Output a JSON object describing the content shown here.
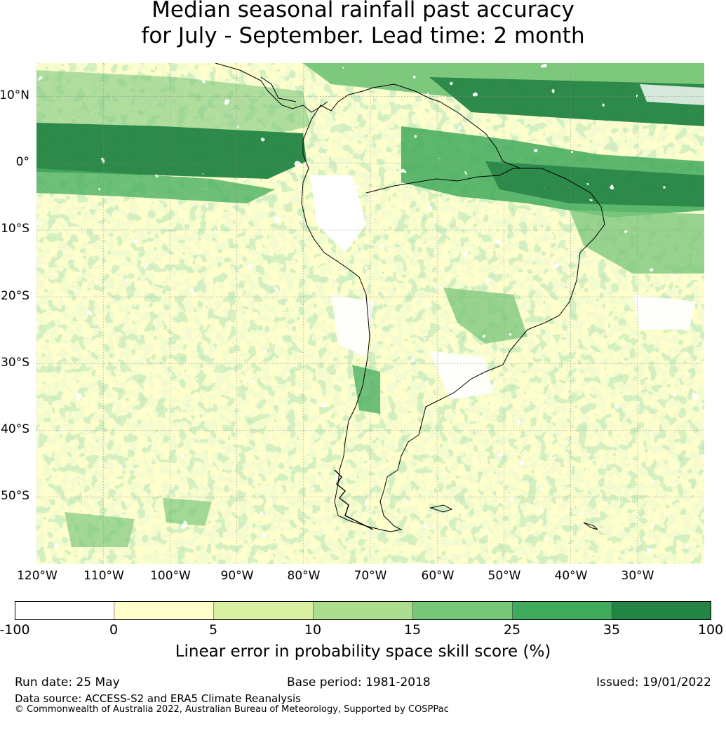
{
  "title": {
    "line1": "Median seasonal rainfall past accuracy",
    "line2": "for July - September. Lead time: 2 month"
  },
  "map": {
    "lat_labels": [
      "10°N",
      "0°",
      "10°S",
      "20°S",
      "30°S",
      "40°S",
      "50°S"
    ],
    "lon_labels": [
      "120°W",
      "110°W",
      "100°W",
      "90°W",
      "80°W",
      "70°W",
      "60°W",
      "50°W",
      "40°W",
      "30°W"
    ],
    "extent": {
      "lon": [
        -120,
        -20
      ],
      "lat": [
        -60,
        15
      ]
    },
    "region": "South America"
  },
  "colorbar": {
    "ticks": [
      "-100",
      "0",
      "5",
      "10",
      "15",
      "25",
      "35",
      "100"
    ],
    "colors": [
      "#ffffff",
      "#ffffcc",
      "#d9f0a3",
      "#addd8e",
      "#78c679",
      "#41ab5d",
      "#238443"
    ],
    "label": "Linear error in probability space skill score (%)"
  },
  "footer": {
    "run_date": "Run date: 25 May",
    "base_period": "Base period: 1981-2018",
    "issued": "Issued: 19/01/2022",
    "data_source": "Data source: ACCESS-S2 and ERA5 Climate Reanalysis",
    "copyright": "© Commonwealth of Australia 2022, Australian Bureau of Meteorology, Supported by COSPPac"
  }
}
